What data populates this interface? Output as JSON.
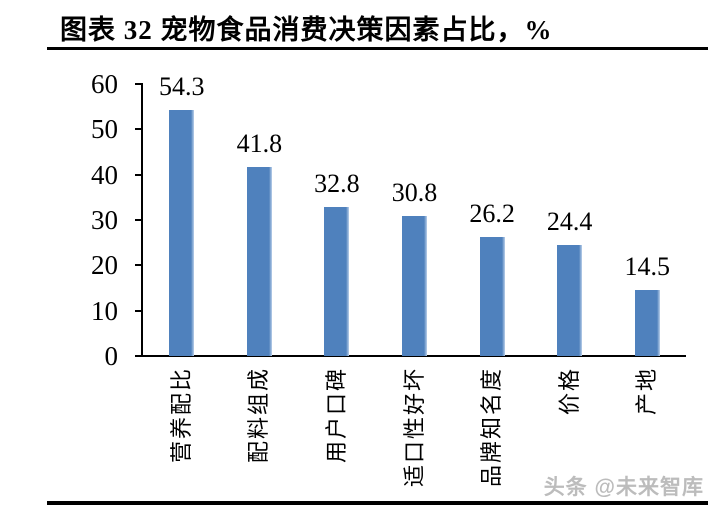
{
  "figure": {
    "title": "图表 32 宠物食品消费决策因素占比，%",
    "watermark": "头条 @未来智库"
  },
  "chart_data": {
    "type": "bar",
    "title": "图表 32 宠物食品消费决策因素占比，%",
    "unit": "%",
    "categories": [
      "营养配比",
      "配料组成",
      "用户口碑",
      "适口性好坏",
      "品牌知名度",
      "价格",
      "产地"
    ],
    "values": [
      54.3,
      41.8,
      32.8,
      30.8,
      26.2,
      24.4,
      14.5
    ],
    "y_ticks": [
      0,
      10,
      20,
      30,
      40,
      50,
      60
    ],
    "ylim": [
      0,
      60
    ],
    "bar_color": "#4F81BD",
    "bar_edge_highlight": "#b9cfe9",
    "axis_color": "#000000",
    "grid": false,
    "legend": "none",
    "data_labels": true,
    "category_label_rotation": 90
  }
}
